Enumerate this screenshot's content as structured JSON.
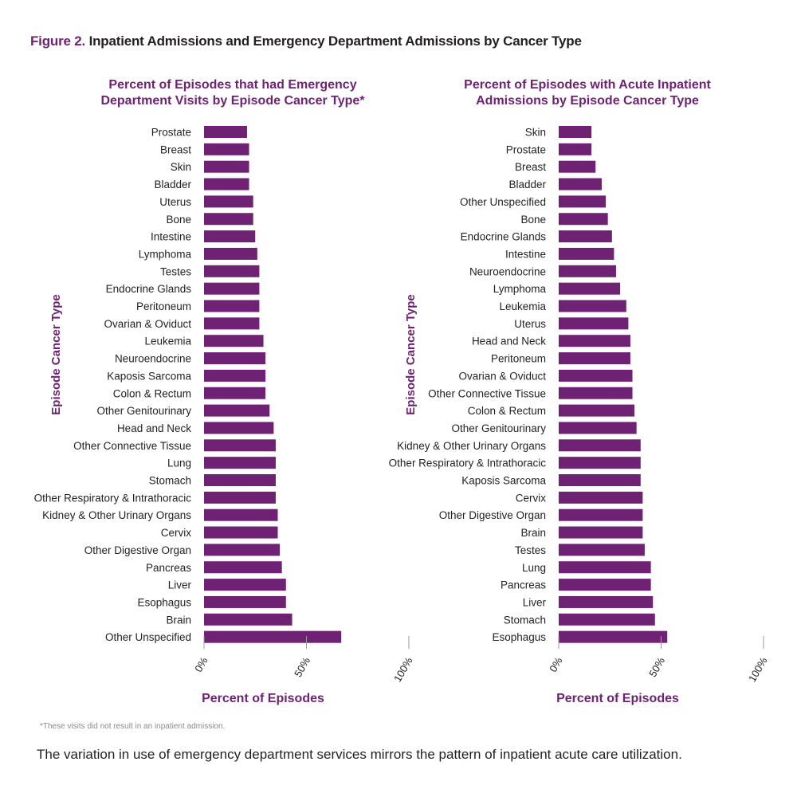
{
  "figure": {
    "number": "Figure 2.",
    "title": "Inpatient Admissions and Emergency Department Admissions by Cancer Type",
    "footnote": "*These visits did not result in an inpatient admission.",
    "caption": "The variation in use of emergency department services mirrors the pattern of inpatient acute care utilization."
  },
  "colors": {
    "bar": "#6f2274",
    "accent": "#6f2274",
    "text": "#231f20",
    "axis": "#9a9a9a"
  },
  "chart_data": [
    {
      "type": "bar",
      "orientation": "horizontal",
      "title": [
        "Percent of Episodes that had Emergency",
        "Department Visits by Episode Cancer Type*"
      ],
      "xlabel": "Percent of Episodes",
      "ylabel": "Episode Cancer Type",
      "xlim": [
        0,
        100
      ],
      "xticks": [
        0,
        50,
        100
      ],
      "xtick_labels": [
        "0%",
        "50%",
        "100%"
      ],
      "grid": false,
      "categories": [
        "Prostate",
        "Breast",
        "Skin",
        "Bladder",
        "Uterus",
        "Bone",
        "Intestine",
        "Lymphoma",
        "Testes",
        "Endocrine Glands",
        "Peritoneum",
        "Ovarian & Oviduct",
        "Leukemia",
        "Neuroendocrine",
        "Kaposis Sarcoma",
        "Colon & Rectum",
        "Other Genitourinary",
        "Head and Neck",
        "Other Connective Tissue",
        "Lung",
        "Stomach",
        "Other Respiratory & Intrathoracic",
        "Kidney & Other Urinary Organs",
        "Cervix",
        "Other Digestive Organ",
        "Pancreas",
        "Liver",
        "Esophagus",
        "Brain",
        "Other Unspecified"
      ],
      "values": [
        21,
        22,
        22,
        22,
        24,
        24,
        25,
        26,
        27,
        27,
        27,
        27,
        29,
        30,
        30,
        30,
        32,
        34,
        35,
        35,
        35,
        35,
        36,
        36,
        37,
        38,
        40,
        40,
        43,
        67
      ]
    },
    {
      "type": "bar",
      "orientation": "horizontal",
      "title": [
        "Percent of Episodes with Acute Inpatient",
        "Admissions by Episode Cancer Type"
      ],
      "xlabel": "Percent of Episodes",
      "ylabel": "Episode Cancer Type",
      "xlim": [
        0,
        100
      ],
      "xticks": [
        0,
        50,
        100
      ],
      "xtick_labels": [
        "0%",
        "50%",
        "100%"
      ],
      "grid": false,
      "categories": [
        "Skin",
        "Prostate",
        "Breast",
        "Bladder",
        "Other Unspecified",
        "Bone",
        "Endocrine Glands",
        "Intestine",
        "Neuroendocrine",
        "Lymphoma",
        "Leukemia",
        "Uterus",
        "Head and Neck",
        "Peritoneum",
        "Ovarian & Oviduct",
        "Other Connective Tissue",
        "Colon & Rectum",
        "Other Genitourinary",
        "Kidney & Other Urinary Organs",
        "Other Respiratory & Intrathoracic",
        "Kaposis Sarcoma",
        "Cervix",
        "Other Digestive Organ",
        "Brain",
        "Testes",
        "Lung",
        "Pancreas",
        "Liver",
        "Stomach",
        "Esophagus"
      ],
      "values": [
        16,
        16,
        18,
        21,
        23,
        24,
        26,
        27,
        28,
        30,
        33,
        34,
        35,
        35,
        36,
        36,
        37,
        38,
        40,
        40,
        40,
        41,
        41,
        41,
        42,
        45,
        45,
        46,
        47,
        53
      ]
    }
  ]
}
